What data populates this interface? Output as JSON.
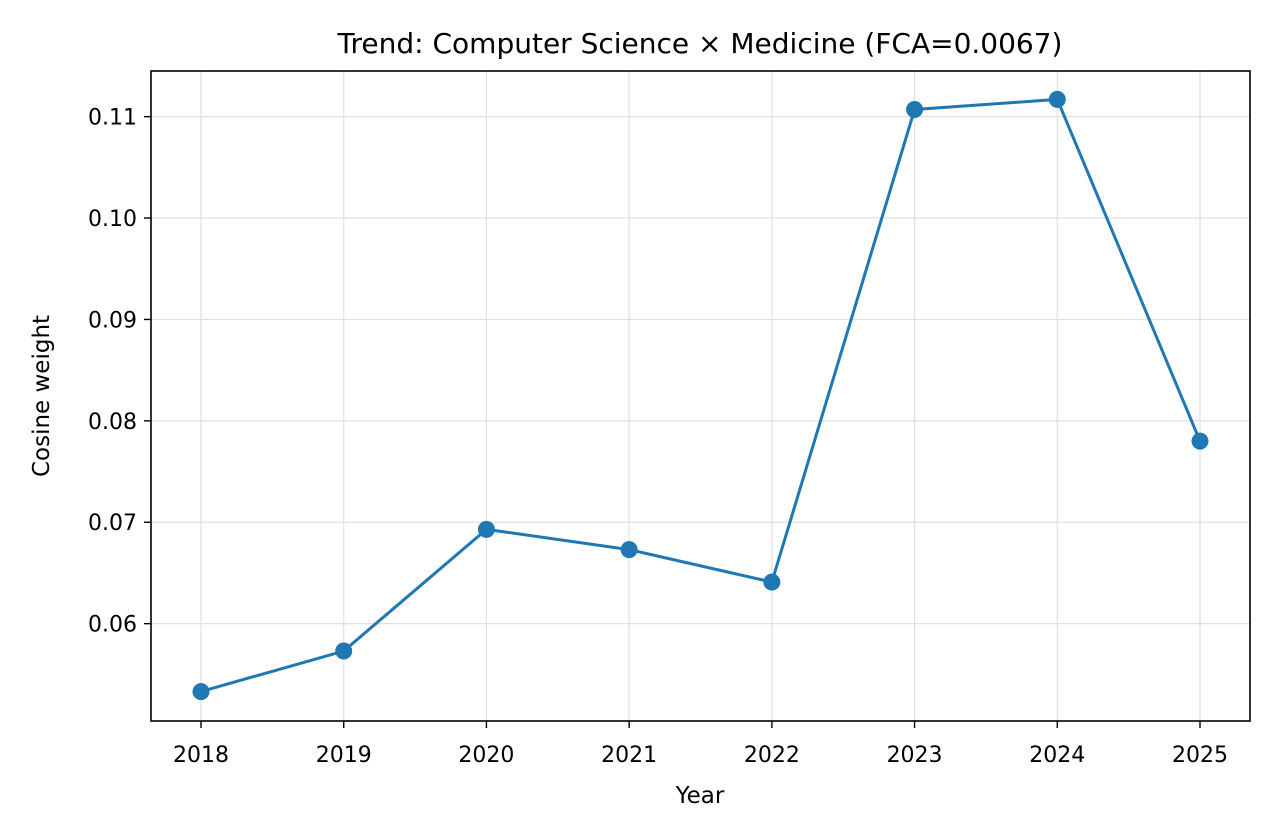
{
  "chart_data": {
    "type": "line",
    "title": "Trend: Computer Science × Medicine  (FCA=0.0067)",
    "xlabel": "Year",
    "ylabel": "Cosine weight",
    "x": [
      "2018",
      "2019",
      "2020",
      "2021",
      "2022",
      "2023",
      "2024",
      "2025"
    ],
    "series": [
      {
        "values": [
          0.0533,
          0.0573,
          0.0693,
          0.0673,
          0.0641,
          0.1107,
          0.1117,
          0.078
        ]
      }
    ],
    "ylim": [
      0.0504,
      0.1145
    ],
    "yticks": [
      0.06,
      0.07,
      0.08,
      0.09,
      0.1,
      0.11
    ],
    "ytick_labels": [
      "0.06",
      "0.07",
      "0.08",
      "0.09",
      "0.10",
      "0.11"
    ],
    "grid": true,
    "legend": "none",
    "colors": {
      "line": "#1f77b4",
      "grid": "#e0e0e0",
      "axes": "#000000"
    }
  }
}
